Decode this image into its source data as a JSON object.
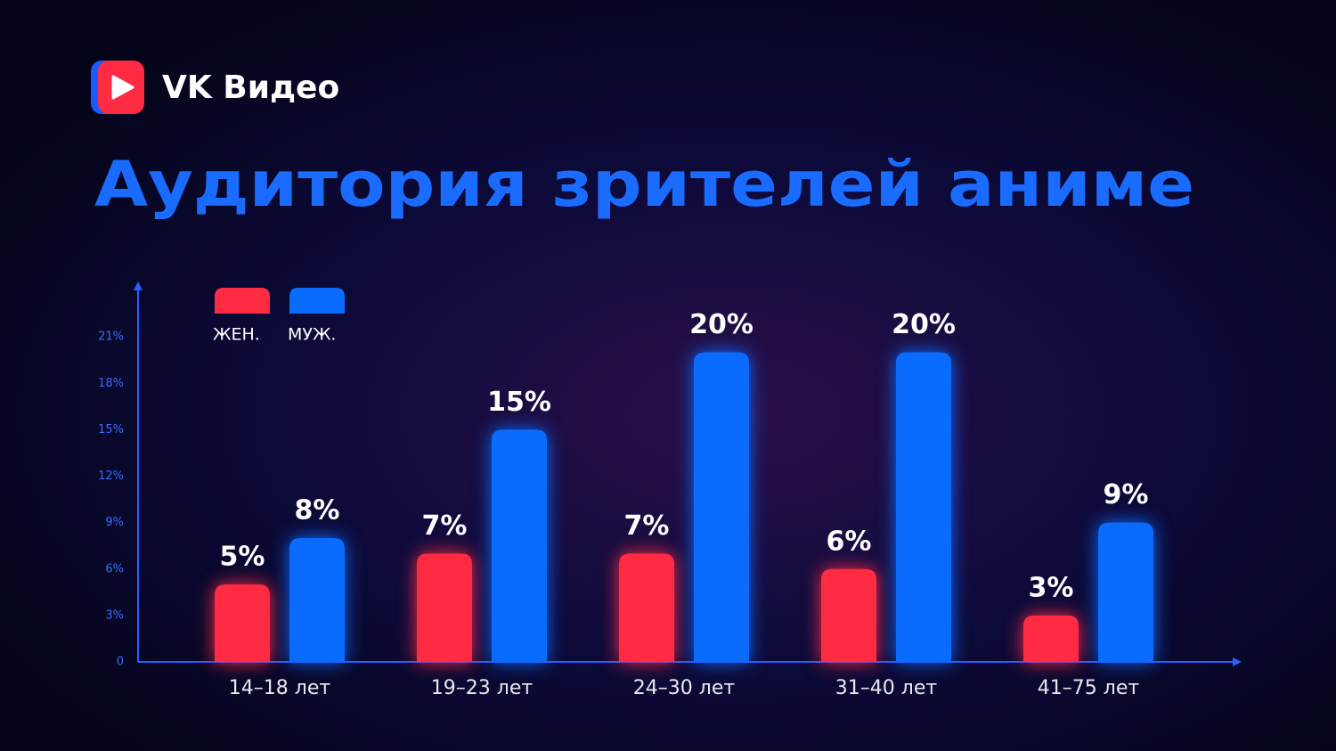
{
  "chart_data": {
    "type": "bar",
    "brand": "VK Видео",
    "title": "Аудитория зрителей аниме",
    "categories": [
      "14–18 лет",
      "19–23 лет",
      "24–30 лет",
      "31–40 лет",
      "41–75 лет"
    ],
    "series": [
      {
        "name": "ЖЕН.",
        "color": "#ff2b43",
        "values": [
          5,
          7,
          7,
          6,
          3
        ],
        "value_labels": [
          "5%",
          "7%",
          "7%",
          "6%",
          "3%"
        ]
      },
      {
        "name": "МУЖ.",
        "color": "#0a6cff",
        "values": [
          8,
          15,
          20,
          20,
          9
        ],
        "value_labels": [
          "8%",
          "15%",
          "20%",
          "20%",
          "9%"
        ]
      }
    ],
    "ylim": [
      0,
      24
    ],
    "yticks": [
      0,
      {
        "value": 3,
        "label": "3%"
      },
      {
        "value": 6,
        "label": "6%"
      },
      {
        "value": 9,
        "label": "9%"
      },
      {
        "value": 12,
        "label": "12%"
      },
      {
        "value": 15,
        "label": "15%"
      },
      {
        "value": 18,
        "label": "18%"
      },
      {
        "value": 21,
        "label": "21%"
      }
    ],
    "grid": false
  }
}
